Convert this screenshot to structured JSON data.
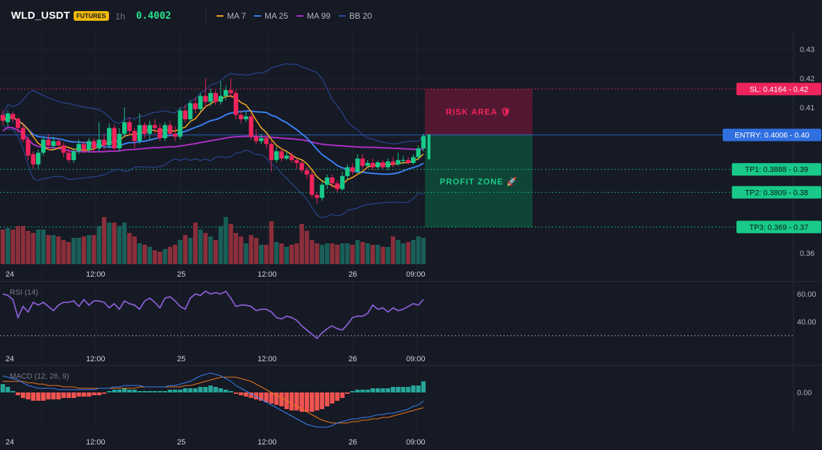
{
  "header": {
    "symbol": "WLD_USDT",
    "badge": "FUTURES",
    "timeframe": "1h",
    "price": "0.4002",
    "legend": [
      {
        "label": "MA 7",
        "color": "#f5a623"
      },
      {
        "label": "MA 25",
        "color": "#3b82f6"
      },
      {
        "label": "MA 99",
        "color": "#b030c8"
      },
      {
        "label": "BB 20",
        "color": "#2b4fa8"
      }
    ]
  },
  "colors": {
    "up": "#18c98a",
    "down": "#f0245c",
    "vol_up": "#1a5e58",
    "vol_down": "#8a2f3b",
    "ma7": "#f5a623",
    "ma25": "#3b82f6",
    "ma99": "#b030c8",
    "bb": "#2b4fa8",
    "rsi": "#8a5fd6",
    "macd": "#3b82f6",
    "signal": "#f07a1a"
  },
  "time_axis": {
    "labels": [
      "24",
      "12:00",
      "25",
      "12:00",
      "26",
      "09:00"
    ]
  },
  "chart_data": [
    {
      "type": "candlestick",
      "title": "WLD_USDT 1h",
      "ylim": [
        0.356,
        0.436
      ],
      "yticks": [
        "0.43",
        "0.42",
        "0.41",
        "0.40",
        "0.36"
      ],
      "ytick_values": [
        0.43,
        0.42,
        0.41,
        0.4,
        0.36
      ],
      "levels": [
        {
          "name": "sl",
          "label": "SL: 0.4164 - 0.42",
          "value": 0.4164,
          "color": "#f0245c"
        },
        {
          "name": "entry",
          "label": "ENTRY: 0.4006 - 0.40",
          "value": 0.4006,
          "color": "#2f6fe0"
        },
        {
          "name": "tp1",
          "label": "TP1: 0.3888 - 0.39",
          "value": 0.3888,
          "color": "#18c98a"
        },
        {
          "name": "tp2",
          "label": "TP2: 0.3809 - 0.38",
          "value": 0.3809,
          "color": "#18c98a"
        },
        {
          "name": "tp3",
          "label": "TP3: 0.369 - 0.37",
          "value": 0.369,
          "color": "#18c98a"
        }
      ],
      "zones": [
        {
          "label": "RISK AREA 🛡",
          "from": 0.4006,
          "to": 0.4164
        },
        {
          "label": "PROFIT ZONE 🚀",
          "from": 0.369,
          "to": 0.4006
        }
      ],
      "candles": [
        [
          0.4075,
          0.4055,
          0.4092,
          0.404
        ],
        [
          0.405,
          0.408,
          0.409,
          0.4035
        ],
        [
          0.4078,
          0.406,
          0.4085,
          0.4048
        ],
        [
          0.4062,
          0.403,
          0.4068,
          0.4015
        ],
        [
          0.403,
          0.399,
          0.404,
          0.398
        ],
        [
          0.399,
          0.3935,
          0.4,
          0.392
        ],
        [
          0.394,
          0.3905,
          0.395,
          0.389
        ],
        [
          0.3905,
          0.3945,
          0.3955,
          0.389
        ],
        [
          0.3945,
          0.399,
          0.4,
          0.3935
        ],
        [
          0.399,
          0.397,
          0.401,
          0.3955
        ],
        [
          0.3968,
          0.3985,
          0.4,
          0.3955
        ],
        [
          0.3985,
          0.397,
          0.3995,
          0.396
        ],
        [
          0.397,
          0.3945,
          0.398,
          0.393
        ],
        [
          0.3945,
          0.392,
          0.396,
          0.391
        ],
        [
          0.392,
          0.395,
          0.396,
          0.391
        ],
        [
          0.395,
          0.3975,
          0.399,
          0.394
        ],
        [
          0.3975,
          0.3955,
          0.3985,
          0.3945
        ],
        [
          0.3955,
          0.3985,
          0.3995,
          0.3945
        ],
        [
          0.3985,
          0.396,
          0.3995,
          0.395
        ],
        [
          0.396,
          0.399,
          0.405,
          0.395
        ],
        [
          0.399,
          0.397,
          0.401,
          0.3955
        ],
        [
          0.397,
          0.403,
          0.4045,
          0.396
        ],
        [
          0.403,
          0.396,
          0.404,
          0.395
        ],
        [
          0.396,
          0.401,
          0.403,
          0.395
        ],
        [
          0.401,
          0.405,
          0.41,
          0.4
        ],
        [
          0.405,
          0.402,
          0.4065,
          0.4005
        ],
        [
          0.402,
          0.3985,
          0.403,
          0.396
        ],
        [
          0.3985,
          0.404,
          0.408,
          0.3975
        ],
        [
          0.404,
          0.401,
          0.405,
          0.3995
        ],
        [
          0.401,
          0.404,
          0.4055,
          0.399
        ],
        [
          0.404,
          0.403,
          0.406,
          0.401
        ],
        [
          0.403,
          0.3995,
          0.4045,
          0.3985
        ],
        [
          0.3995,
          0.404,
          0.405,
          0.3985
        ],
        [
          0.404,
          0.401,
          0.4055,
          0.4
        ],
        [
          0.401,
          0.4,
          0.4035,
          0.3985
        ],
        [
          0.4,
          0.409,
          0.41,
          0.399
        ],
        [
          0.409,
          0.406,
          0.411,
          0.405
        ],
        [
          0.406,
          0.4115,
          0.4125,
          0.405
        ],
        [
          0.4115,
          0.4095,
          0.4135,
          0.408
        ],
        [
          0.4095,
          0.414,
          0.415,
          0.4085
        ],
        [
          0.414,
          0.412,
          0.42,
          0.41
        ],
        [
          0.412,
          0.415,
          0.4165,
          0.4105
        ],
        [
          0.415,
          0.412,
          0.416,
          0.411
        ],
        [
          0.412,
          0.414,
          0.419,
          0.411
        ],
        [
          0.414,
          0.416,
          0.4175,
          0.4125
        ],
        [
          0.416,
          0.415,
          0.42,
          0.4135
        ],
        [
          0.415,
          0.4075,
          0.416,
          0.406
        ],
        [
          0.4075,
          0.406,
          0.409,
          0.4045
        ],
        [
          0.406,
          0.407,
          0.4085,
          0.405
        ],
        [
          0.407,
          0.4,
          0.408,
          0.399
        ],
        [
          0.4,
          0.3985,
          0.4025,
          0.3975
        ],
        [
          0.3985,
          0.3995,
          0.401,
          0.3975
        ],
        [
          0.3995,
          0.3975,
          0.4005,
          0.396
        ],
        [
          0.3975,
          0.392,
          0.3985,
          0.388
        ],
        [
          0.392,
          0.395,
          0.3965,
          0.391
        ],
        [
          0.395,
          0.3925,
          0.396,
          0.3915
        ],
        [
          0.3925,
          0.3935,
          0.395,
          0.392
        ],
        [
          0.3935,
          0.392,
          0.3945,
          0.391
        ],
        [
          0.392,
          0.391,
          0.3925,
          0.389
        ],
        [
          0.391,
          0.3885,
          0.392,
          0.3875
        ],
        [
          0.3885,
          0.387,
          0.3895,
          0.3855
        ],
        [
          0.387,
          0.38,
          0.3885,
          0.379
        ],
        [
          0.38,
          0.379,
          0.381,
          0.377
        ],
        [
          0.379,
          0.3835,
          0.3845,
          0.378
        ],
        [
          0.3835,
          0.386,
          0.387,
          0.382
        ],
        [
          0.386,
          0.384,
          0.387,
          0.3825
        ],
        [
          0.384,
          0.382,
          0.385,
          0.381
        ],
        [
          0.382,
          0.3865,
          0.388,
          0.3815
        ],
        [
          0.3865,
          0.3895,
          0.3905,
          0.3855
        ],
        [
          0.3895,
          0.388,
          0.391,
          0.387
        ],
        [
          0.388,
          0.3925,
          0.394,
          0.3875
        ],
        [
          0.3925,
          0.39,
          0.394,
          0.389
        ],
        [
          0.39,
          0.391,
          0.392,
          0.3895
        ],
        [
          0.391,
          0.3895,
          0.3925,
          0.3885
        ],
        [
          0.3895,
          0.3912,
          0.3918,
          0.3888
        ],
        [
          0.3912,
          0.3895,
          0.392,
          0.389
        ],
        [
          0.3895,
          0.3915,
          0.3925,
          0.3885
        ],
        [
          0.3915,
          0.3905,
          0.393,
          0.3895
        ],
        [
          0.3905,
          0.392,
          0.3945,
          0.39
        ],
        [
          0.392,
          0.392,
          0.3935,
          0.3905
        ],
        [
          0.392,
          0.391,
          0.393,
          0.3905
        ],
        [
          0.391,
          0.393,
          0.394,
          0.3905
        ],
        [
          0.393,
          0.396,
          0.397,
          0.392
        ],
        [
          0.396,
          0.4002,
          0.401,
          0.395
        ]
      ],
      "volume": [
        50,
        52,
        50,
        55,
        55,
        48,
        45,
        50,
        50,
        42,
        42,
        40,
        35,
        32,
        38,
        38,
        40,
        42,
        42,
        55,
        68,
        60,
        60,
        55,
        60,
        45,
        40,
        30,
        28,
        25,
        20,
        18,
        22,
        25,
        28,
        35,
        42,
        38,
        60,
        50,
        45,
        40,
        35,
        55,
        68,
        58,
        45,
        40,
        30,
        42,
        38,
        28,
        28,
        62,
        32,
        30,
        25,
        28,
        30,
        58,
        48,
        35,
        30,
        28,
        30,
        30,
        28,
        30,
        30,
        28,
        35,
        32,
        30,
        28,
        28,
        25,
        25,
        40,
        35,
        30,
        32,
        35,
        40,
        38
      ]
    },
    {
      "type": "line",
      "title": "RSI (14)",
      "ylim": [
        22,
        68
      ],
      "yticks": [
        "60.00",
        "40.00"
      ],
      "ytick_values": [
        60,
        40
      ],
      "reference": 30,
      "values": [
        60,
        59,
        56,
        43,
        51,
        47,
        54,
        52,
        54,
        51,
        48,
        52,
        54,
        54,
        55,
        51,
        56,
        52,
        55,
        55,
        54,
        50,
        53,
        49,
        55,
        53,
        52,
        49,
        55,
        57,
        54,
        50,
        57,
        58,
        55,
        51,
        49,
        57,
        60,
        59,
        62,
        60,
        61,
        60,
        62,
        57,
        51,
        52,
        52,
        51,
        48,
        49,
        49,
        47,
        43,
        42,
        44,
        43,
        41,
        37,
        34,
        31,
        28,
        32,
        35,
        37,
        35,
        34,
        38,
        43,
        44,
        44,
        46,
        52,
        49,
        50,
        47,
        50,
        48,
        49,
        51,
        53,
        52,
        56
      ]
    },
    {
      "type": "macd",
      "title": "MACD (12, 26, 9)",
      "yticks": [
        "0.00"
      ],
      "ytick_values": [
        0
      ],
      "ylim": [
        -0.0028,
        0.0018
      ],
      "histogram": [
        0.0006,
        0.0004,
        0.0001,
        -0.0002,
        -0.0004,
        -0.0005,
        -0.0006,
        -0.0006,
        -0.0006,
        -0.0005,
        -0.0005,
        -0.0005,
        -0.0004,
        -0.0004,
        -0.0004,
        -0.0003,
        -0.0003,
        -0.0003,
        -0.0002,
        -0.0002,
        -0.0001,
        0.0001,
        0.0002,
        0.0002,
        0.0003,
        0.0002,
        0.0002,
        0.0001,
        0.0001,
        0.0001,
        0.0001,
        0.0001,
        0.0001,
        0.0002,
        0.0002,
        0.0002,
        0.0003,
        0.0003,
        0.0003,
        0.0004,
        0.0004,
        0.0005,
        0.0004,
        0.0003,
        0.0002,
        0.0001,
        -0.0001,
        -0.0002,
        -0.0003,
        -0.0004,
        -0.0005,
        -0.0006,
        -0.0007,
        -0.0008,
        -0.0009,
        -0.001,
        -0.0012,
        -0.0013,
        -0.0013,
        -0.0014,
        -0.0014,
        -0.0014,
        -0.0013,
        -0.0012,
        -0.001,
        -0.0008,
        -0.0006,
        -0.0004,
        -0.0001,
        0.0001,
        0.0002,
        0.0002,
        0.0002,
        0.0003,
        0.0003,
        0.0003,
        0.0003,
        0.0004,
        0.0004,
        0.0004,
        0.0004,
        0.0005,
        0.0005,
        0.0008
      ],
      "macd": [
        0.0012,
        0.0011,
        0.001,
        0.0009,
        0.0007,
        0.0005,
        0.0004,
        0.0003,
        0.0003,
        0.0003,
        0.0003,
        0.0002,
        0.0002,
        0.0002,
        0.0002,
        0.0002,
        0.0002,
        0.0002,
        0.0002,
        0.0003,
        0.0003,
        0.0003,
        0.0004,
        0.0004,
        0.0005,
        0.0005,
        0.0005,
        0.0005,
        0.0004,
        0.0004,
        0.0004,
        0.0004,
        0.0004,
        0.0005,
        0.0005,
        0.0006,
        0.0007,
        0.0008,
        0.001,
        0.0012,
        0.0013,
        0.0014,
        0.0013,
        0.0012,
        0.001,
        0.0008,
        0.0005,
        0.0003,
        0.0001,
        -0.0001,
        -0.0003,
        -0.0005,
        -0.0007,
        -0.0009,
        -0.0011,
        -0.0013,
        -0.0015,
        -0.0017,
        -0.0019,
        -0.0021,
        -0.0023,
        -0.0024,
        -0.0025,
        -0.0025,
        -0.0025,
        -0.0024,
        -0.0022,
        -0.0021,
        -0.002,
        -0.0019,
        -0.0019,
        -0.0018,
        -0.0018,
        -0.0017,
        -0.0016,
        -0.0016,
        -0.0015,
        -0.0015,
        -0.0014,
        -0.0013,
        -0.0012,
        -0.001,
        -0.0009,
        -0.0006
      ],
      "signal": [
        0.0008,
        0.0008,
        0.0008,
        0.0008,
        0.0008,
        0.0007,
        0.0007,
        0.0006,
        0.0006,
        0.0005,
        0.0005,
        0.0005,
        0.0004,
        0.0004,
        0.0004,
        0.0003,
        0.0003,
        0.0003,
        0.0003,
        0.0003,
        0.0003,
        0.0003,
        0.0003,
        0.0003,
        0.0003,
        0.0003,
        0.0003,
        0.0004,
        0.0004,
        0.0004,
        0.0004,
        0.0004,
        0.0004,
        0.0004,
        0.0004,
        0.0004,
        0.0005,
        0.0005,
        0.0006,
        0.0007,
        0.0008,
        0.0009,
        0.001,
        0.0011,
        0.0011,
        0.0011,
        0.0011,
        0.001,
        0.0009,
        0.0008,
        0.0006,
        0.0004,
        0.0002,
        0.0,
        -0.0002,
        -0.0004,
        -0.0006,
        -0.0008,
        -0.001,
        -0.0012,
        -0.0014,
        -0.0016,
        -0.0018,
        -0.002,
        -0.0021,
        -0.0022,
        -0.0022,
        -0.0022,
        -0.0022,
        -0.0021,
        -0.0021,
        -0.002,
        -0.002,
        -0.0019,
        -0.0019,
        -0.0018,
        -0.0018,
        -0.0017,
        -0.0016,
        -0.0015,
        -0.0014,
        -0.0013,
        -0.0012,
        -0.0011
      ]
    }
  ]
}
